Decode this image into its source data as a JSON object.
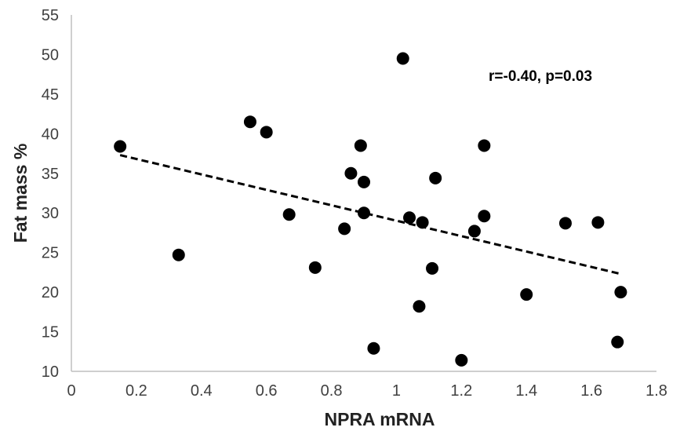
{
  "chart_data": {
    "type": "scatter",
    "title": "",
    "xlabel": "NPRA mRNA",
    "ylabel": "Fat mass %",
    "xlim": [
      0,
      1.8
    ],
    "ylim": [
      10,
      55
    ],
    "xticks": [
      0,
      0.2,
      0.4,
      0.6,
      0.8,
      1,
      1.2,
      1.4,
      1.6,
      1.8
    ],
    "xtick_labels": [
      "0",
      "0.2",
      "0.4",
      "0.6",
      "0.8",
      "1",
      "1.2",
      "1.4",
      "1.6",
      "1.8"
    ],
    "yticks": [
      10,
      15,
      20,
      25,
      30,
      35,
      40,
      45,
      50,
      55
    ],
    "ytick_labels": [
      "10",
      "15",
      "20",
      "25",
      "30",
      "35",
      "40",
      "45",
      "50",
      "55"
    ],
    "grid": false,
    "legend": "none",
    "marker_color": "#000000",
    "annotation": "r=-0.40, p=0.03",
    "trendline": {
      "style": "dashed",
      "color": "#000000",
      "x": [
        0.15,
        1.69
      ],
      "y": [
        37.3,
        22.3
      ]
    },
    "points": [
      {
        "x": 0.15,
        "y": 38.4
      },
      {
        "x": 0.33,
        "y": 24.7
      },
      {
        "x": 0.55,
        "y": 41.5
      },
      {
        "x": 0.6,
        "y": 40.2
      },
      {
        "x": 0.67,
        "y": 29.8
      },
      {
        "x": 0.75,
        "y": 23.1
      },
      {
        "x": 0.84,
        "y": 28.0
      },
      {
        "x": 0.86,
        "y": 35.0
      },
      {
        "x": 0.89,
        "y": 38.5
      },
      {
        "x": 0.9,
        "y": 33.9
      },
      {
        "x": 0.9,
        "y": 30.0
      },
      {
        "x": 0.93,
        "y": 12.9
      },
      {
        "x": 1.02,
        "y": 49.5
      },
      {
        "x": 1.04,
        "y": 29.4
      },
      {
        "x": 1.07,
        "y": 18.2
      },
      {
        "x": 1.08,
        "y": 28.8
      },
      {
        "x": 1.11,
        "y": 23.0
      },
      {
        "x": 1.12,
        "y": 34.4
      },
      {
        "x": 1.2,
        "y": 11.4
      },
      {
        "x": 1.24,
        "y": 27.7
      },
      {
        "x": 1.27,
        "y": 38.5
      },
      {
        "x": 1.27,
        "y": 29.6
      },
      {
        "x": 1.4,
        "y": 19.7
      },
      {
        "x": 1.52,
        "y": 28.7
      },
      {
        "x": 1.62,
        "y": 28.8
      },
      {
        "x": 1.68,
        "y": 13.7
      },
      {
        "x": 1.69,
        "y": 20.0
      }
    ]
  }
}
